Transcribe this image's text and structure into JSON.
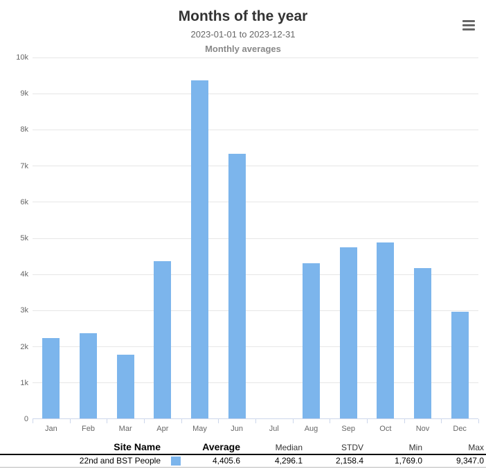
{
  "header": {
    "title": "Months of the year",
    "subtitle": "2023-01-01 to 2023-12-31",
    "subtitle2": "Monthly averages"
  },
  "chart_data": {
    "type": "bar",
    "title": "Months of the year",
    "subtitle": "2023-01-01 to 2023-12-31",
    "caption": "Monthly averages",
    "categories": [
      "Jan",
      "Feb",
      "Mar",
      "Apr",
      "May",
      "Jun",
      "Jul",
      "Aug",
      "Sep",
      "Oct",
      "Nov",
      "Dec"
    ],
    "values": [
      2222,
      2356,
      1769,
      4348,
      9347,
      7324,
      0,
      4296.1,
      4725,
      4872,
      4163,
      2944
    ],
    "series_name": "22nd and BST People",
    "bar_color": "#7cb5ec",
    "ylim": [
      0,
      10000
    ],
    "ytick_step": 1000,
    "ytick_labels": [
      "0",
      "1k",
      "2k",
      "3k",
      "4k",
      "5k",
      "6k",
      "7k",
      "8k",
      "9k",
      "10k"
    ],
    "grid": true,
    "gridline_color": "#e6e6e6",
    "axis_line_color": "#ccd6eb",
    "legend_position": "bottom-table"
  },
  "table": {
    "headers": {
      "site_name": "Site Name",
      "average": "Average",
      "median": "Median",
      "stdv": "STDV",
      "min": "Min",
      "max": "Max"
    },
    "rows": [
      {
        "site_name": "22nd and BST People",
        "swatch_color": "#7cb5ec",
        "average": "4,405.6",
        "median": "4,296.1",
        "stdv": "2,158.4",
        "min": "1,769.0",
        "max": "9,347.0"
      }
    ]
  }
}
